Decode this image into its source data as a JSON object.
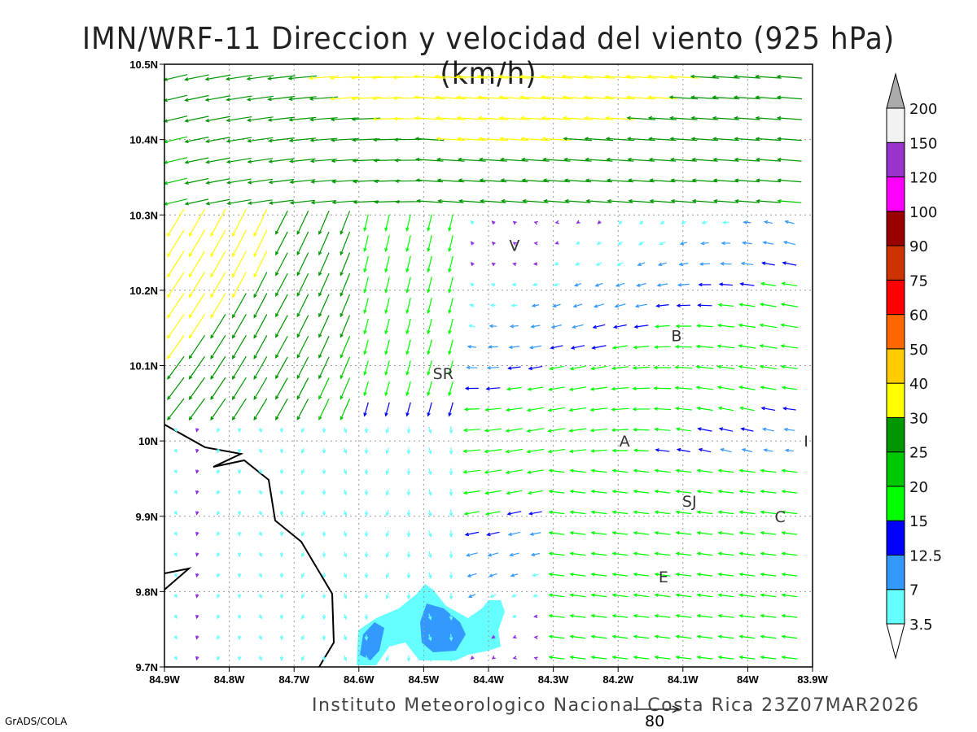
{
  "title": "IMN/WRF-11 Direccion y velocidad del viento (925 hPa)(km/h)",
  "footer": "Instituto Meteorologico Nacional Costa Rica  23Z07MAR2026",
  "grads_label": "GrADS/COLA",
  "reference_vector": {
    "label": "80",
    "value_kmh": 80
  },
  "axes": {
    "lat_labels": [
      "10.5N",
      "10.4N",
      "10.3N",
      "10.2N",
      "10.1N",
      "10N",
      "9.9N",
      "9.8N",
      "9.7N"
    ],
    "lon_labels": [
      "84.9W",
      "84.8W",
      "84.7W",
      "84.6W",
      "84.5W",
      "84.4W",
      "84.3W",
      "84.2W",
      "84.1W",
      "84W",
      "83.9W"
    ],
    "lat_range": [
      9.7,
      10.5
    ],
    "lon_range": [
      -84.9,
      -83.9
    ]
  },
  "stations": [
    {
      "label": "V",
      "lon": -84.36,
      "lat": 10.26
    },
    {
      "label": "B",
      "lon": -84.11,
      "lat": 10.14
    },
    {
      "label": "SR",
      "lon": -84.47,
      "lat": 10.09
    },
    {
      "label": "A",
      "lon": -84.19,
      "lat": 10.0
    },
    {
      "label": "I",
      "lon": -83.91,
      "lat": 10.0
    },
    {
      "label": "SJ",
      "lon": -84.09,
      "lat": 9.92
    },
    {
      "label": "C",
      "lon": -83.95,
      "lat": 9.9
    },
    {
      "label": "E",
      "lon": -84.13,
      "lat": 9.82
    }
  ],
  "legend": {
    "levels": [
      "3.5",
      "7",
      "12.5",
      "15",
      "20",
      "25",
      "30",
      "40",
      "50",
      "60",
      "75",
      "90",
      "100",
      "120",
      "150",
      "200"
    ],
    "colors": [
      "#66ffff",
      "#3399ff",
      "#0000ff",
      "#00ff00",
      "#00c800",
      "#009600",
      "#ffff00",
      "#ffcc00",
      "#ff6600",
      "#ff0000",
      "#cc3300",
      "#990000",
      "#ff00ff",
      "#9933cc",
      "#f2f2f2"
    ],
    "over_color": "#aaaaaa",
    "under_color": "#ffffff"
  }
}
